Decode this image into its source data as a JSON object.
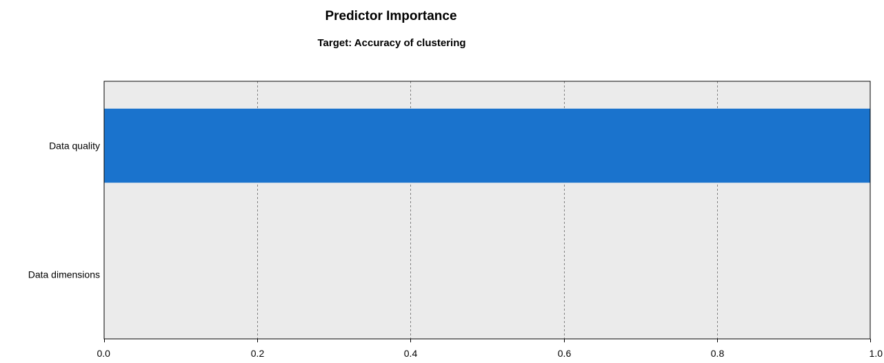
{
  "chart_data": {
    "type": "bar",
    "orientation": "horizontal",
    "title": "Predictor Importance",
    "subtitle": "Target: Accuracy of clustering",
    "categories": [
      "Data quality",
      "Data dimensions"
    ],
    "values": [
      1.0,
      0.0
    ],
    "xlim": [
      0,
      1
    ],
    "xticks": [
      "0.0",
      "0.2",
      "0.4",
      "0.6",
      "0.8",
      "1.0"
    ],
    "grid": true,
    "colors": {
      "bar": "#1a73cd",
      "plot_background": "#ebebeb",
      "grid": "#808080"
    }
  }
}
